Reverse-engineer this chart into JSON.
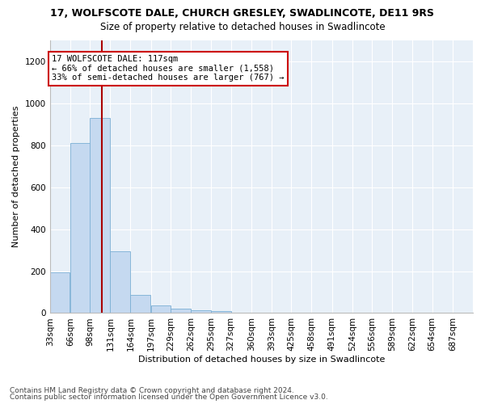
{
  "title": "17, WOLFSCOTE DALE, CHURCH GRESLEY, SWADLINCOTE, DE11 9RS",
  "subtitle": "Size of property relative to detached houses in Swadlincote",
  "xlabel": "Distribution of detached houses by size in Swadlincote",
  "ylabel": "Number of detached properties",
  "bar_color": "#c5d9f0",
  "bar_edge_color": "#7bafd4",
  "fig_background_color": "#ffffff",
  "axes_background_color": "#e8f0f8",
  "grid_color": "#ffffff",
  "bins_left": [
    33,
    66,
    98,
    131,
    164,
    197,
    229,
    262,
    295,
    327,
    360,
    393,
    425,
    458,
    491,
    524,
    556,
    589,
    622,
    654
  ],
  "bin_width": 33,
  "bin_labels": [
    "33sqm",
    "66sqm",
    "98sqm",
    "131sqm",
    "164sqm",
    "197sqm",
    "229sqm",
    "262sqm",
    "295sqm",
    "327sqm",
    "360sqm",
    "393sqm",
    "425sqm",
    "458sqm",
    "491sqm",
    "524sqm",
    "556sqm",
    "589sqm",
    "622sqm",
    "654sqm",
    "687sqm"
  ],
  "values": [
    195,
    810,
    930,
    295,
    88,
    35,
    20,
    15,
    10,
    0,
    0,
    0,
    0,
    0,
    0,
    0,
    0,
    0,
    0,
    0
  ],
  "ylim": [
    0,
    1300
  ],
  "yticks": [
    0,
    200,
    400,
    600,
    800,
    1000,
    1200
  ],
  "xlim_left": 33,
  "xlim_right": 720,
  "property_size": 117,
  "property_label": "17 WOLFSCOTE DALE: 117sqm",
  "annotation_line1": "← 66% of detached houses are smaller (1,558)",
  "annotation_line2": "33% of semi-detached houses are larger (767) →",
  "annotation_box_facecolor": "#ffffff",
  "annotation_border_color": "#cc0000",
  "vline_color": "#aa0000",
  "footer1": "Contains HM Land Registry data © Crown copyright and database right 2024.",
  "footer2": "Contains public sector information licensed under the Open Government Licence v3.0.",
  "title_fontsize": 9,
  "subtitle_fontsize": 8.5,
  "ylabel_fontsize": 8,
  "xlabel_fontsize": 8,
  "tick_fontsize": 7.5,
  "annotation_fontsize": 7.5,
  "footer_fontsize": 6.5
}
